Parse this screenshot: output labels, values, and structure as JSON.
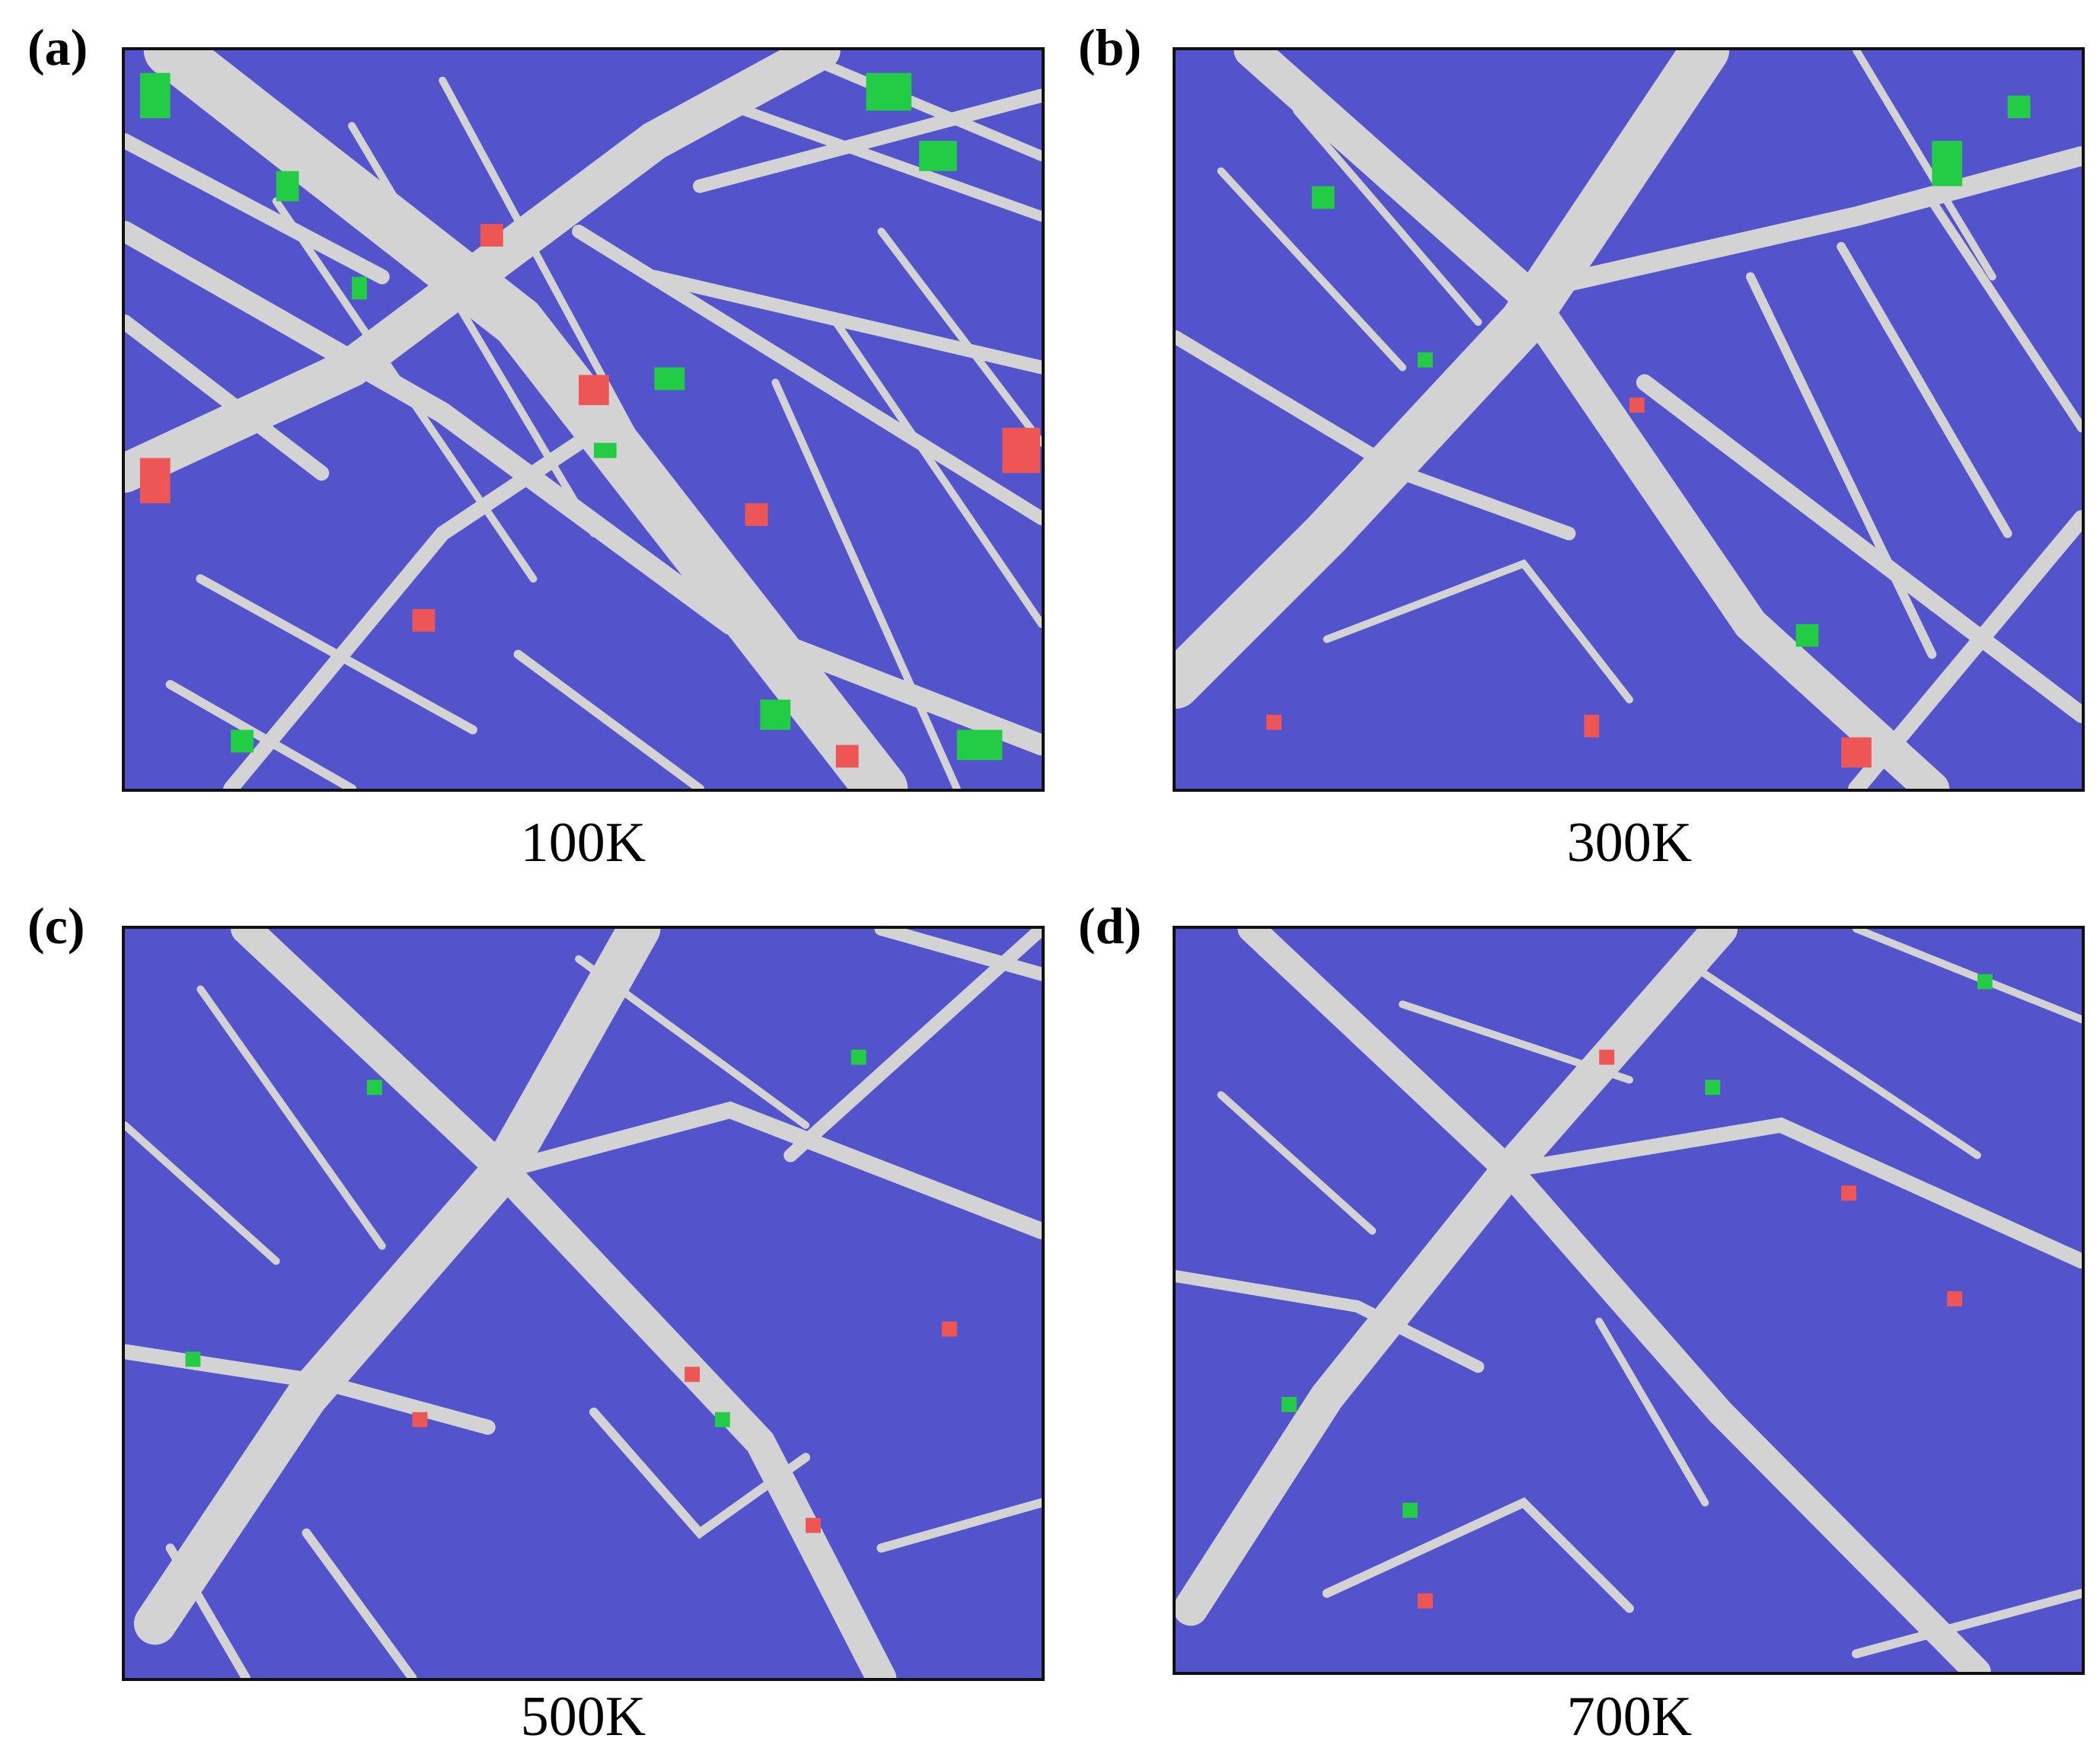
{
  "panels": [
    {
      "id": "a",
      "label": "(a)",
      "caption": "100K",
      "network": "dense"
    },
    {
      "id": "b",
      "label": "(b)",
      "caption": "300K",
      "network": "medium"
    },
    {
      "id": "c",
      "label": "(c)",
      "caption": "500K",
      "network": "sparse"
    },
    {
      "id": "d",
      "label": "(d)",
      "caption": "700K",
      "network": "sparse"
    }
  ],
  "colors": {
    "matrix": "#5353cc",
    "defect": "#d3d3d3",
    "green_atoms": "#22cc44",
    "red_atoms": "#ee5555",
    "frame": "#111111"
  }
}
